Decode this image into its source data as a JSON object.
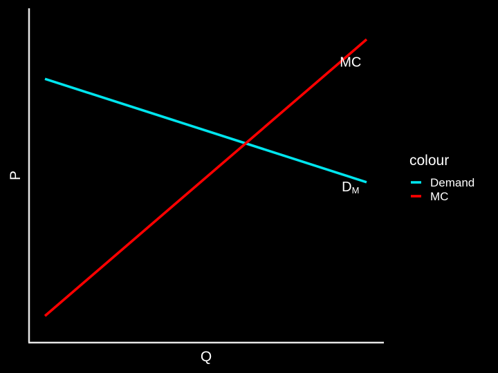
{
  "chart_data": {
    "type": "line",
    "title": "",
    "xlabel": "Q",
    "ylabel": "P",
    "xlim": [
      0,
      10
    ],
    "ylim": [
      0,
      10
    ],
    "grid": false,
    "legend_position": "right",
    "legend_title": "colour",
    "series": [
      {
        "name": "Demand",
        "color": "#00e5ee",
        "x": [
          0,
          10
        ],
        "y": [
          8.2,
          4.8
        ]
      },
      {
        "name": "MC",
        "color": "#ff0000",
        "x": [
          0,
          10
        ],
        "y": [
          0.4,
          9.5
        ]
      }
    ],
    "annotations": [
      {
        "series": "MC",
        "text": "MC",
        "sub": "",
        "x": 9.5,
        "y": 8.6
      },
      {
        "series": "Demand",
        "text": "D",
        "sub": "M",
        "x": 9.5,
        "y": 4.5
      }
    ]
  }
}
